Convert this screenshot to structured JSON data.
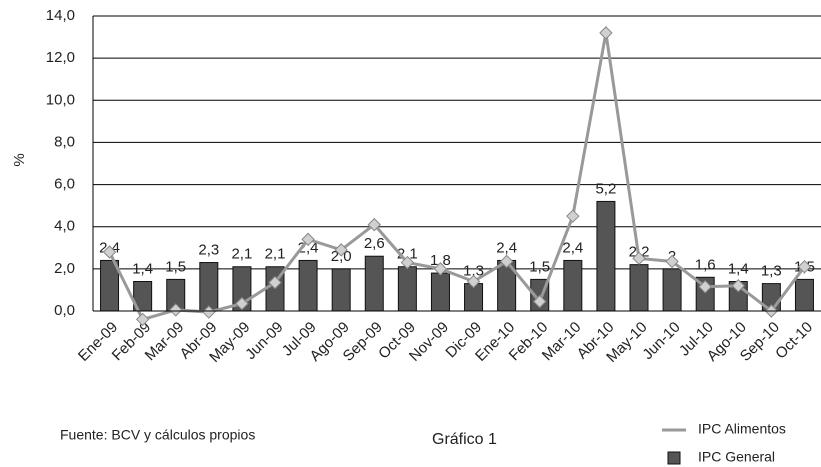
{
  "chart_data": {
    "type": "bar_line",
    "y_axis_label": "%",
    "categories": [
      "Ene-09",
      "Feb-09",
      "Mar-09",
      "Abr-09",
      "May-09",
      "Jun-09",
      "Jul-09",
      "Ago-09",
      "Sep-09",
      "Oct-09",
      "Nov-09",
      "Dic-09",
      "Ene-10",
      "Feb-10",
      "Mar-10",
      "Abr-10",
      "May-10",
      "Jun-10",
      "Jul-10",
      "Ago-10",
      "Sep-10",
      "Oct-10"
    ],
    "series": [
      {
        "name": "IPC Alimentos",
        "type": "line",
        "color": "#999999",
        "marker_color": "#d0d0d0",
        "values": [
          2.8,
          -0.4,
          0.05,
          -0.05,
          0.35,
          1.35,
          3.4,
          2.9,
          4.1,
          2.3,
          2.0,
          1.4,
          2.35,
          0.45,
          4.5,
          13.2,
          2.5,
          2.35,
          1.15,
          1.2,
          0.0,
          2.1
        ]
      },
      {
        "name": "IPC General",
        "type": "bar",
        "color": "#555555",
        "values": [
          2.4,
          1.4,
          1.5,
          2.3,
          2.1,
          2.1,
          2.4,
          2.0,
          2.6,
          2.1,
          1.8,
          1.3,
          2.4,
          1.5,
          2.4,
          5.2,
          2.2,
          2,
          1.6,
          1.4,
          1.3,
          1.5
        ],
        "value_labels": [
          "2,4",
          "1,4",
          "1,5",
          "2,3",
          "2,1",
          "2,1",
          "2,4",
          "2,0",
          "2,6",
          "2,1",
          "1,8",
          "1,3",
          "2,4",
          "1,5",
          "2,4",
          "5,2",
          "2,2",
          "2",
          "1,6",
          "1,4",
          "1,3",
          "1,5"
        ]
      }
    ],
    "ylim": [
      0,
      14
    ],
    "yticks": [
      {
        "value": 0,
        "label": "0,0"
      },
      {
        "value": 2,
        "label": "2,0"
      },
      {
        "value": 4,
        "label": "4,0"
      },
      {
        "value": 6,
        "label": "6,0"
      },
      {
        "value": 8,
        "label": "8,0"
      },
      {
        "value": 10,
        "label": "10,0"
      },
      {
        "value": 12,
        "label": "12,0"
      },
      {
        "value": 14,
        "label": "14,0"
      }
    ],
    "grid": true,
    "source": "Fuente: BCV y cálculos propios",
    "caption": "Gráfico 1"
  }
}
